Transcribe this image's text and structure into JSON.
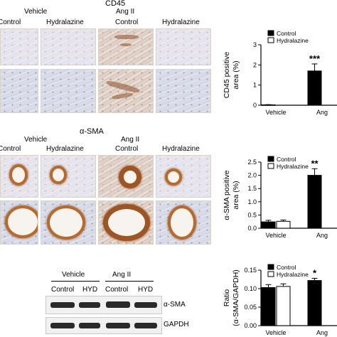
{
  "panel_a": {
    "title": "CD45",
    "group_vehicle": "Vehicle",
    "group_ang": "Ang II",
    "col_control_1": "Control",
    "col_hydralazine_1": "Hydralazine",
    "col_control_2": "Control",
    "col_hydralazine_2": "Hydralazine"
  },
  "panel_b": {
    "title": "α-SMA",
    "group_vehicle": "Vehicle",
    "group_ang": "Ang II",
    "col_control_1": "Control",
    "col_hydralazine_1": "Hydralazine",
    "col_control_2": "Control",
    "col_hydralazine_2": "Hydralazine"
  },
  "blot": {
    "group_vehicle": "Vehicle",
    "group_ang": "Ang II",
    "lanes": [
      "Control",
      "HYD",
      "Control",
      "HYD"
    ],
    "row1": "α-SMA",
    "row2": "GAPDH"
  },
  "colors": {
    "control_bar": "#000000",
    "hydralazine_bar": "#ffffff",
    "stain": "#b86a2c"
  },
  "chart_data": [
    {
      "type": "bar",
      "ylabel": "CD45 positive area (%)",
      "yticks": [
        "0",
        "1",
        "2",
        "3"
      ],
      "ylim": [
        0,
        3
      ],
      "categories": [
        "Vehicle",
        "Ang"
      ],
      "series": [
        {
          "name": "Control",
          "values": [
            0.02,
            1.7
          ],
          "errors": [
            0.01,
            0.35
          ]
        },
        {
          "name": "Hydralazine",
          "values": [
            null,
            null
          ]
        }
      ],
      "annotations": [
        "***"
      ],
      "legend": "top-right"
    },
    {
      "type": "bar",
      "ylabel": "α-SMA positive area (%)",
      "yticks": [
        "0.0",
        "0.5",
        "1.0",
        "1.5",
        "2.0",
        "2.5"
      ],
      "ylim": [
        0,
        2.5
      ],
      "categories": [
        "Vehicle",
        "Ang"
      ],
      "series": [
        {
          "name": "Control",
          "values": [
            0.24,
            2.0
          ],
          "errors": [
            0.06,
            0.25
          ]
        },
        {
          "name": "Hydralazine",
          "values": [
            0.26,
            null
          ],
          "errors": [
            0.05,
            null
          ]
        }
      ],
      "annotations": [
        "**"
      ],
      "legend": "top-right"
    },
    {
      "type": "bar",
      "ylabel": "Ratio (α-SMA/GAPDH)",
      "yticks": [
        "0.00",
        "0.05",
        "0.10",
        "0.15"
      ],
      "ylim": [
        0,
        0.15
      ],
      "categories": [
        "Vehicle",
        "Ang"
      ],
      "series": [
        {
          "name": "Control",
          "values": [
            0.103,
            0.122
          ],
          "errors": [
            0.008,
            0.006
          ]
        },
        {
          "name": "Hydralazine",
          "values": [
            0.106,
            null
          ],
          "errors": [
            0.007,
            null
          ]
        }
      ],
      "annotations": [
        "*"
      ],
      "legend": "top-right"
    }
  ]
}
